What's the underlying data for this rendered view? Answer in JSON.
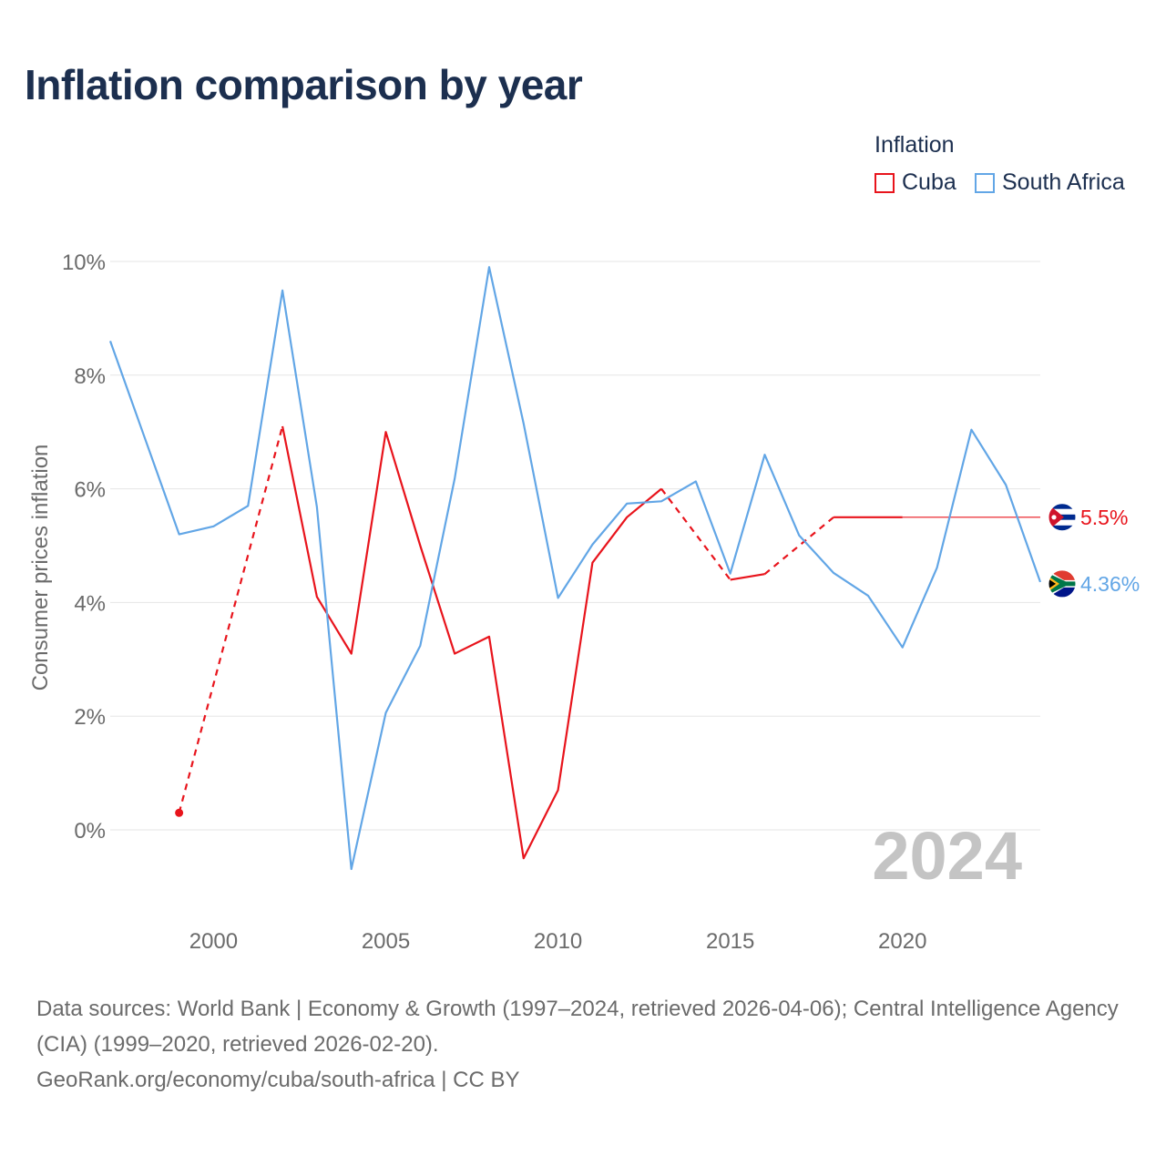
{
  "title": "Inflation comparison by year",
  "legend": {
    "title": "Inflation",
    "items": [
      {
        "label": "Cuba",
        "color": "#e8141c"
      },
      {
        "label": "South Africa",
        "color": "#62a6e6"
      }
    ]
  },
  "chart_data": {
    "type": "line",
    "title": "Inflation comparison by year",
    "xlabel": "",
    "ylabel": "Consumer prices inflation",
    "xlim": [
      1997,
      2024
    ],
    "ylim": [
      -1.5,
      10
    ],
    "y_ticks": [
      0,
      2,
      4,
      6,
      8,
      10
    ],
    "y_tick_labels": [
      "0%",
      "2%",
      "4%",
      "6%",
      "8%",
      "10%"
    ],
    "x_ticks": [
      2000,
      2005,
      2010,
      2015,
      2020
    ],
    "x_tick_labels": [
      "2000",
      "2005",
      "2010",
      "2015",
      "2020"
    ],
    "grid": true,
    "year_watermark": "2024",
    "series": [
      {
        "name": "Cuba",
        "color": "#e8141c",
        "end_label": "5.5%",
        "end_year": 2024,
        "end_value": 5.5,
        "flag": "cuba-flag",
        "points": [
          {
            "x": 1999,
            "y": 0.3
          },
          {
            "x": 2002,
            "y": 7.1,
            "gap_before": true
          },
          {
            "x": 2003,
            "y": 4.1
          },
          {
            "x": 2004,
            "y": 3.1
          },
          {
            "x": 2005,
            "y": 7.0
          },
          {
            "x": 2006,
            "y": 5.0
          },
          {
            "x": 2007,
            "y": 3.1
          },
          {
            "x": 2008,
            "y": 3.4
          },
          {
            "x": 2009,
            "y": -0.5
          },
          {
            "x": 2010,
            "y": 0.7
          },
          {
            "x": 2011,
            "y": 4.7
          },
          {
            "x": 2012,
            "y": 5.5
          },
          {
            "x": 2013,
            "y": 6.0
          },
          {
            "x": 2015,
            "y": 4.4,
            "gap_before": true
          },
          {
            "x": 2016,
            "y": 4.5
          },
          {
            "x": 2018,
            "y": 5.5,
            "gap_before": true
          },
          {
            "x": 2020,
            "y": 5.5
          }
        ]
      },
      {
        "name": "South Africa",
        "color": "#62a6e6",
        "end_label": "4.36%",
        "end_year": 2024,
        "end_value": 4.36,
        "flag": "south-africa-flag",
        "points": [
          {
            "x": 1997,
            "y": 8.6
          },
          {
            "x": 1998,
            "y": 6.9
          },
          {
            "x": 1999,
            "y": 5.2
          },
          {
            "x": 2000,
            "y": 5.34
          },
          {
            "x": 2001,
            "y": 5.7
          },
          {
            "x": 2002,
            "y": 9.49
          },
          {
            "x": 2003,
            "y": 5.68
          },
          {
            "x": 2004,
            "y": -0.69
          },
          {
            "x": 2005,
            "y": 2.06
          },
          {
            "x": 2006,
            "y": 3.24
          },
          {
            "x": 2007,
            "y": 6.18
          },
          {
            "x": 2008,
            "y": 9.9
          },
          {
            "x": 2009,
            "y": 7.15
          },
          {
            "x": 2010,
            "y": 4.08
          },
          {
            "x": 2011,
            "y": 5.02
          },
          {
            "x": 2012,
            "y": 5.74
          },
          {
            "x": 2013,
            "y": 5.78
          },
          {
            "x": 2014,
            "y": 6.13
          },
          {
            "x": 2015,
            "y": 4.51
          },
          {
            "x": 2016,
            "y": 6.6
          },
          {
            "x": 2017,
            "y": 5.18
          },
          {
            "x": 2018,
            "y": 4.52
          },
          {
            "x": 2019,
            "y": 4.12
          },
          {
            "x": 2020,
            "y": 3.21
          },
          {
            "x": 2021,
            "y": 4.61
          },
          {
            "x": 2022,
            "y": 7.04
          },
          {
            "x": 2023,
            "y": 6.07
          },
          {
            "x": 2024,
            "y": 4.36
          }
        ]
      }
    ]
  },
  "footer": {
    "sources": "Data sources: World Bank | Economy & Growth (1997–2024, retrieved 2026-04-06); Central Intelligence Agency (CIA) (1999–2020, retrieved 2026-02-20).",
    "credit": "GeoRank.org/economy/cuba/south-africa | CC BY"
  }
}
